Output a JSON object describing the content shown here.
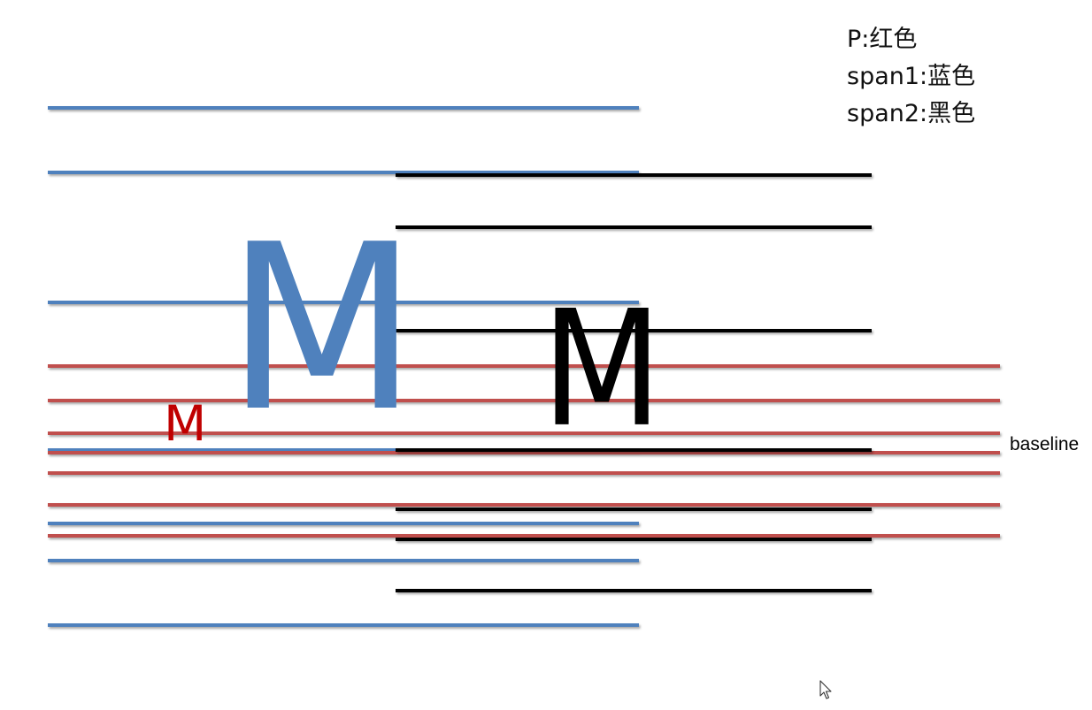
{
  "legend": {
    "lines": [
      "P:红色",
      "span1:蓝色",
      "span2:黑色"
    ]
  },
  "labels": {
    "baseline": "baseline"
  },
  "glyphs": {
    "p_letter": "M",
    "span1_letter": "M",
    "span2_letter": "M"
  },
  "colors": {
    "p": "#C0504D",
    "p_text": "#C00000",
    "span1": "#4F81BD",
    "span2": "#000000"
  },
  "icons": {
    "cursor": "mouse-pointer-icon"
  }
}
